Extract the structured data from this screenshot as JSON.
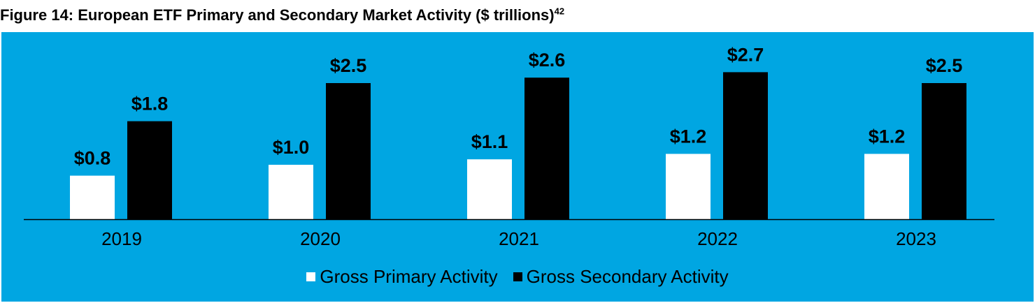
{
  "title": {
    "text": "Figure 14: European ETF Primary and Secondary Market Activity ($ trillions)",
    "footnote": "42"
  },
  "colors": {
    "background": "#00a6e2",
    "primary": "#ffffff",
    "secondary": "#000000",
    "axis": "#000000"
  },
  "chart_data": {
    "type": "bar",
    "title": "Figure 14: European ETF Primary and Secondary Market Activity ($ trillions)",
    "categories": [
      "2019",
      "2020",
      "2021",
      "2022",
      "2023"
    ],
    "series": [
      {
        "name": "Gross Primary Activity",
        "values": [
          0.8,
          1.0,
          1.1,
          1.2,
          1.2
        ],
        "labels": [
          "$0.8",
          "$1.0",
          "$1.1",
          "$1.2",
          "$1.2"
        ],
        "color": "#ffffff"
      },
      {
        "name": "Gross Secondary Activity",
        "values": [
          1.8,
          2.5,
          2.6,
          2.7,
          2.5
        ],
        "labels": [
          "$1.8",
          "$2.5",
          "$2.6",
          "$2.7",
          "$2.5"
        ],
        "color": "#000000"
      }
    ],
    "ylim": [
      0,
      3
    ],
    "grid": false,
    "legend_position": "bottom-center"
  }
}
